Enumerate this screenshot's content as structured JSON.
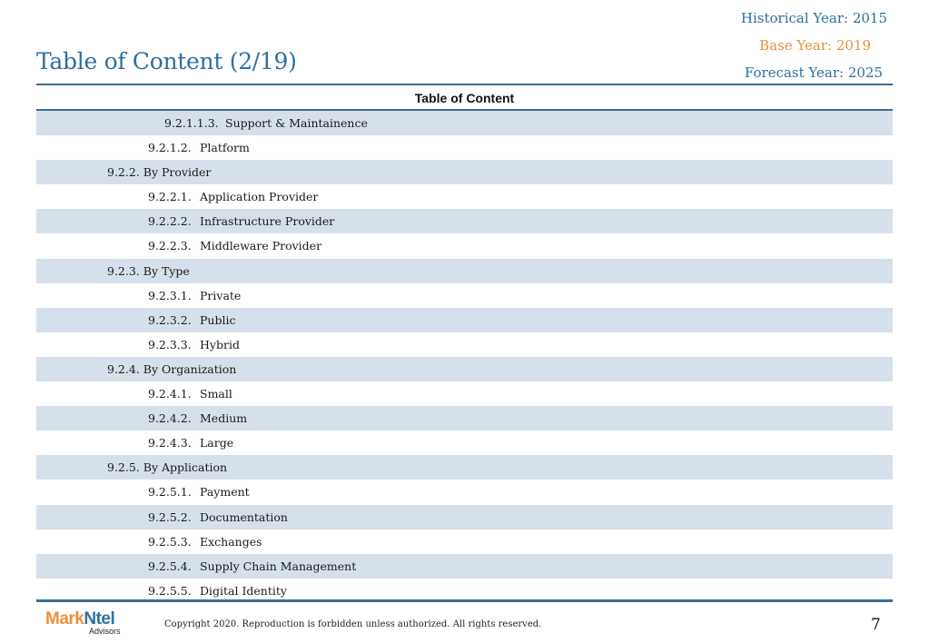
{
  "header": {
    "historical_year": "Historical Year: 2015",
    "base_year": "Base Year: 2019",
    "forecast_year": "Forecast Year: 2025",
    "title": "Table of Content (2/19)"
  },
  "toc": {
    "heading": "Table of Content",
    "rows": [
      {
        "level": 3,
        "num": "9.2.1.1.3.",
        "label": "Support & Maintainence",
        "shaded": true
      },
      {
        "level": 2,
        "num": "9.2.1.2.",
        "label": "Platform",
        "shaded": false
      },
      {
        "level": 1,
        "num": "9.2.2.",
        "label": "By Provider",
        "shaded": true
      },
      {
        "level": 2,
        "num": "9.2.2.1.",
        "label": "Application Provider",
        "shaded": false
      },
      {
        "level": 2,
        "num": "9.2.2.2.",
        "label": "Infrastructure Provider",
        "shaded": true
      },
      {
        "level": 2,
        "num": "9.2.2.3.",
        "label": "Middleware Provider",
        "shaded": false
      },
      {
        "level": 1,
        "num": "9.2.3.",
        "label": "By Type",
        "shaded": true
      },
      {
        "level": 2,
        "num": "9.2.3.1.",
        "label": "Private",
        "shaded": false
      },
      {
        "level": 2,
        "num": "9.2.3.2.",
        "label": "Public",
        "shaded": true
      },
      {
        "level": 2,
        "num": "9.2.3.3.",
        "label": "Hybrid",
        "shaded": false
      },
      {
        "level": 1,
        "num": "9.2.4.",
        "label": "By Organization",
        "shaded": true
      },
      {
        "level": 2,
        "num": "9.2.4.1.",
        "label": "Small",
        "shaded": false
      },
      {
        "level": 2,
        "num": "9.2.4.2.",
        "label": "Medium",
        "shaded": true
      },
      {
        "level": 2,
        "num": "9.2.4.3.",
        "label": "Large",
        "shaded": false
      },
      {
        "level": 1,
        "num": "9.2.5.",
        "label": "By Application",
        "shaded": true
      },
      {
        "level": 2,
        "num": "9.2.5.1.",
        "label": "Payment",
        "shaded": false
      },
      {
        "level": 2,
        "num": "9.2.5.2.",
        "label": "Documentation",
        "shaded": true
      },
      {
        "level": 2,
        "num": "9.2.5.3.",
        "label": "Exchanges",
        "shaded": false
      },
      {
        "level": 2,
        "num": "9.2.5.4.",
        "label": "Supply Chain Management",
        "shaded": true
      },
      {
        "level": 2,
        "num": "9.2.5.5.",
        "label": "Digital Identity",
        "shaded": false
      }
    ]
  },
  "footer": {
    "logo_part1": "Mark",
    "logo_part2": "Ntel",
    "logo_sub": "Advisors",
    "copyright": "Copyright 2020. Reproduction is forbidden unless authorized. All rights reserved.",
    "page_number": "7"
  },
  "colors": {
    "accent_blue": "#2e6f9e",
    "accent_orange": "#e8923a",
    "row_shade": "#d6e0ea"
  }
}
